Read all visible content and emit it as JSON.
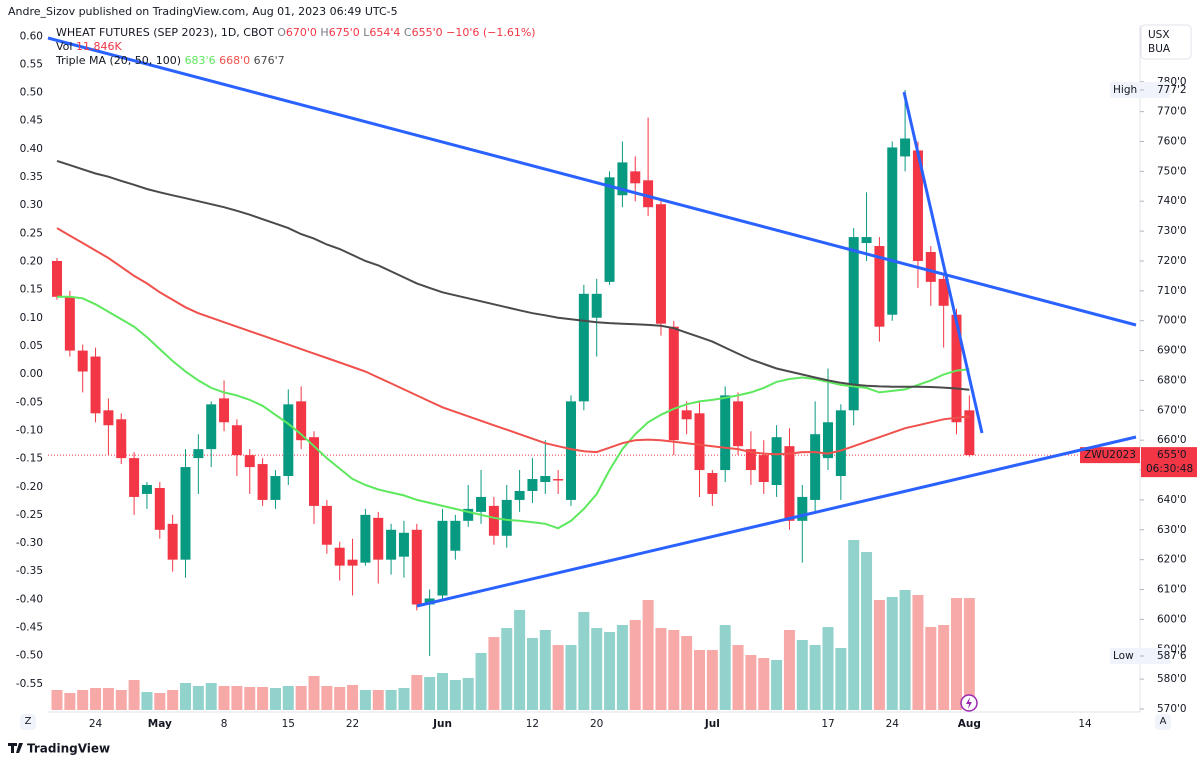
{
  "header": {
    "publisher_line": "Andre_Sizov published on TradingView.com, Aug 01, 2023 06:49 UTC-5"
  },
  "ui": {
    "currency": "USX",
    "unit": "BUA",
    "left_button": "Z",
    "right_button": "A",
    "footer_logo": "TradingView"
  },
  "chart_data": {
    "type": "candlestick",
    "title": "WHEAT FUTURES (SEP 2023), 1D, CBOT",
    "ohlc_legend": [
      {
        "key": "O",
        "value": "670'0"
      },
      {
        "key": "H",
        "value": "675'0"
      },
      {
        "key": "L",
        "value": "654'4"
      },
      {
        "key": "C",
        "value": "655'0"
      }
    ],
    "change_label": "−10'6 (−1.61%)",
    "volume_legend": {
      "label": "Vol",
      "value_label": "11.846K"
    },
    "ma_indicator": {
      "name": "Triple MA (20, 50, 100)"
    },
    "categories": [
      null,
      null,
      null,
      "24",
      null,
      null,
      null,
      null,
      "May",
      null,
      null,
      null,
      null,
      "8",
      null,
      null,
      null,
      null,
      "15",
      null,
      null,
      null,
      null,
      "22",
      null,
      null,
      null,
      null,
      null,
      null,
      "Jun",
      null,
      null,
      null,
      null,
      null,
      null,
      "12",
      null,
      null,
      null,
      null,
      "20",
      null,
      null,
      null,
      null,
      null,
      null,
      null,
      null,
      "Jul",
      null,
      null,
      null,
      null,
      null,
      null,
      null,
      null,
      "17",
      null,
      null,
      null,
      null,
      "24",
      null,
      null,
      null,
      null,
      null,
      "Aug",
      null,
      null,
      null,
      null,
      null,
      null,
      null,
      null,
      "14",
      null,
      null,
      null
    ],
    "open": [
      720,
      708,
      690,
      688,
      670,
      667,
      654,
      642,
      644,
      632,
      620,
      654,
      657,
      674,
      665,
      655,
      652,
      640,
      648,
      673,
      661,
      638,
      624,
      620,
      619,
      634,
      620,
      621,
      630,
      605,
      608,
      623,
      633,
      636,
      638,
      628,
      640,
      643,
      646,
      647,
      640,
      673,
      701,
      713,
      742,
      750,
      747,
      739,
      698,
      670,
      669,
      649,
      650,
      673,
      657,
      655,
      645,
      658,
      633,
      640,
      654,
      648,
      670,
      726,
      725,
      702,
      755,
      757,
      723,
      714,
      702,
      670,
      null,
      null,
      null,
      null,
      null,
      null,
      null,
      null,
      null,
      null,
      null,
      null
    ],
    "high": [
      721,
      710,
      692,
      691,
      674,
      669,
      656,
      646,
      646,
      635,
      657,
      662,
      673,
      680,
      667,
      657,
      654,
      650,
      677,
      678,
      663,
      640,
      626,
      627,
      637,
      636,
      632,
      633,
      632,
      610,
      637,
      635,
      645,
      650,
      641,
      645,
      650,
      654,
      660,
      650,
      675,
      712,
      714,
      750,
      760,
      755,
      768,
      741,
      700,
      673,
      673,
      650,
      678,
      676,
      663,
      660,
      665,
      664,
      645,
      673,
      684,
      672,
      731,
      743,
      728,
      760,
      777.25,
      760,
      725,
      716,
      704,
      675,
      null,
      null,
      null,
      null,
      null,
      null,
      null,
      null,
      null,
      null,
      null,
      null
    ],
    "low": [
      707,
      688,
      676,
      666,
      655,
      652,
      635,
      637,
      627,
      616,
      614,
      642,
      651,
      663,
      648,
      642,
      638,
      637,
      645,
      657,
      632,
      622,
      613,
      608,
      618,
      612,
      615,
      614,
      603,
      587.75,
      606,
      620,
      631,
      632,
      625,
      624,
      636,
      639,
      642,
      642,
      638,
      670,
      688,
      712,
      738,
      740,
      735,
      695,
      655,
      662,
      641,
      638,
      646,
      655,
      645,
      642,
      641,
      630,
      619,
      636,
      650,
      640,
      665,
      720,
      693,
      700,
      750,
      711,
      705,
      691,
      662,
      654.5,
      null,
      null,
      null,
      null,
      null,
      null,
      null,
      null,
      null,
      null,
      null,
      null
    ],
    "close": [
      708,
      690,
      683,
      669,
      665,
      654,
      641,
      645,
      630,
      620,
      651,
      657,
      672,
      666,
      655,
      651,
      640,
      648,
      672,
      660,
      638,
      625,
      618,
      618,
      635,
      620,
      630,
      629,
      605,
      607,
      633,
      633,
      637,
      641,
      628,
      640,
      643,
      647,
      648,
      646.5,
      673,
      709,
      709,
      748,
      753,
      746,
      738,
      699,
      660,
      667,
      650,
      642,
      675,
      658,
      650,
      646,
      661,
      633,
      641,
      662,
      666,
      670,
      728,
      728,
      698,
      758,
      761,
      720,
      713,
      705,
      666,
      655,
      null,
      null,
      null,
      null,
      null,
      null,
      null,
      null,
      null,
      null,
      null,
      null
    ],
    "volume": [
      2116,
      1799,
      2116,
      2328,
      2328,
      2116,
      3174,
      1904,
      1799,
      2116,
      2857,
      2539,
      2857,
      2539,
      2539,
      2433,
      2433,
      2328,
      2539,
      2539,
      3597,
      2539,
      2433,
      2645,
      2116,
      2116,
      2116,
      2328,
      3703,
      3491,
      3915,
      3174,
      3386,
      6031,
      7723,
      8676,
      10580,
      7618,
      8464,
      6877,
      6877,
      10368,
      8676,
      8252,
      8993,
      9522,
      11638,
      8676,
      8464,
      7829,
      6348,
      6348,
      8993,
      6877,
      5819,
      5502,
      5290,
      8464,
      7406,
      6877,
      8781,
      6560,
      17986,
      16716,
      11638,
      11955,
      12696,
      12167,
      8781,
      8993,
      11846,
      11846,
      null,
      null,
      null,
      null,
      null,
      null,
      null,
      null,
      null,
      null,
      null,
      null
    ],
    "up_color": "#089981",
    "down_color": "#f23645",
    "volume_up_color": "#92d2cc",
    "volume_down_color": "#f7a9a7",
    "ma_series": [
      {
        "color": "#5de85d",
        "legend_value": "683'6",
        "values": [
          708,
          708,
          707.5,
          705.5,
          703,
          700.5,
          698,
          694.5,
          690.5,
          686.5,
          683,
          680,
          677.5,
          676,
          675,
          673.5,
          671.5,
          668.5,
          665.5,
          662,
          658,
          654,
          650.5,
          647,
          645,
          643.5,
          642.5,
          641.5,
          640,
          639,
          638,
          637,
          636,
          635,
          634,
          633.3,
          633,
          632.5,
          632,
          630.5,
          633,
          637,
          642,
          650,
          657,
          662,
          666,
          668.5,
          670.5,
          672,
          673,
          673.5,
          674.2,
          675,
          676,
          677.5,
          679.5,
          680.5,
          681,
          680.5,
          679.5,
          678.5,
          678,
          677.5,
          676,
          676.5,
          677,
          678.5,
          680,
          682,
          683.3,
          683.75,
          null,
          null,
          null,
          null,
          null,
          null,
          null,
          null,
          null,
          null,
          null,
          null
        ]
      },
      {
        "color": "#f0514c",
        "legend_value": "668'0",
        "values": [
          731,
          728.5,
          726,
          723.5,
          721,
          718,
          715,
          712.5,
          709.5,
          707,
          704.5,
          702.5,
          701,
          699.5,
          698,
          696.5,
          695,
          693.5,
          692,
          690.5,
          689,
          687.5,
          686,
          684.5,
          683,
          681,
          679,
          677,
          675,
          673,
          671,
          669.5,
          668,
          666.5,
          665,
          663.5,
          662,
          660.5,
          659,
          658,
          657,
          656.3,
          656,
          657.5,
          659,
          660,
          660.2,
          660,
          659.5,
          659,
          658.5,
          658,
          657.5,
          657,
          656,
          655.5,
          655.3,
          655.5,
          656,
          656,
          655.5,
          656.5,
          658,
          659.5,
          661,
          662.5,
          664,
          665,
          666,
          667,
          667.5,
          668,
          null,
          null,
          null,
          null,
          null,
          null,
          null,
          null,
          null,
          null,
          null,
          null
        ]
      },
      {
        "color": "#4a4a4a",
        "legend_value": "676'7",
        "values": [
          753.5,
          752.1,
          750.7,
          749.3,
          748.2,
          746.8,
          745.5,
          744.1,
          743,
          742,
          741,
          740,
          739,
          738,
          736.8,
          735.5,
          734,
          732.5,
          731,
          729,
          727.5,
          725.5,
          724,
          722,
          720,
          718.5,
          716.5,
          714.5,
          712.5,
          711,
          709.5,
          708.5,
          707.5,
          706.5,
          705.5,
          704.5,
          703.5,
          702.5,
          701.8,
          701,
          700.5,
          700,
          699.5,
          699.2,
          699,
          698.8,
          698.6,
          698.3,
          697.5,
          696,
          694.5,
          693,
          691,
          689,
          687,
          685.5,
          684,
          683,
          682,
          681,
          680,
          679.2,
          678.6,
          678.2,
          678,
          677.9,
          677.9,
          677.9,
          677.8,
          677.6,
          677.3,
          676.875,
          null,
          null,
          null,
          null,
          null,
          null,
          null,
          null,
          null,
          null,
          null,
          null
        ]
      }
    ],
    "ylim": [
      569,
      799
    ],
    "yticks": [
      {
        "value": 570,
        "label": "570'0"
      },
      {
        "value": 580,
        "label": "580'0"
      },
      {
        "value": 590,
        "label": "590'0"
      },
      {
        "value": 600,
        "label": "600'0"
      },
      {
        "value": 610,
        "label": "610'0"
      },
      {
        "value": 620,
        "label": "620'0"
      },
      {
        "value": 630,
        "label": "630'0"
      },
      {
        "value": 640,
        "label": "640'0"
      },
      {
        "value": 650,
        "label": "650'0"
      },
      {
        "value": 660,
        "label": "660'0"
      },
      {
        "value": 670,
        "label": "670'0"
      },
      {
        "value": 680,
        "label": "680'0"
      },
      {
        "value": 690,
        "label": "690'0"
      },
      {
        "value": 700,
        "label": "700'0"
      },
      {
        "value": 710,
        "label": "710'0"
      },
      {
        "value": 720,
        "label": "720'0"
      },
      {
        "value": 730,
        "label": "730'0"
      },
      {
        "value": 740,
        "label": "740'0"
      },
      {
        "value": 750,
        "label": "750'0"
      },
      {
        "value": 760,
        "label": "760'0"
      },
      {
        "value": 770,
        "label": "770'0"
      },
      {
        "value": 780,
        "label": "780'0"
      }
    ],
    "left_axis": {
      "ylim": [
        -0.6,
        0.62
      ],
      "yticks": [
        {
          "value": 0.6,
          "label": "0.60"
        },
        0.55,
        {
          "value": 0.5,
          "label": "0.50"
        },
        0.45,
        {
          "value": 0.4,
          "label": "0.40"
        },
        0.35,
        {
          "value": 0.3,
          "label": "0.30"
        },
        0.25,
        {
          "value": 0.2,
          "label": "0.20"
        },
        0.15,
        {
          "value": 0.1,
          "label": "0.10"
        },
        0.05,
        {
          "value": 0,
          "label": "0.00"
        },
        -0.05,
        {
          "value": -0.1,
          "label": "-0.10"
        },
        -0.15,
        {
          "value": -0.2,
          "label": "-0.20"
        },
        -0.25,
        {
          "value": -0.3,
          "label": "-0.30"
        },
        -0.35,
        {
          "value": -0.4,
          "label": "-0.40"
        },
        -0.45,
        {
          "value": -0.5,
          "label": "-0.50"
        },
        -0.55
      ]
    },
    "high_marker": {
      "label": "High",
      "value": 777.25,
      "value_label": "777'2"
    },
    "low_marker": {
      "label": "Low",
      "value": 587.75,
      "value_label": "587'6"
    },
    "last_price": {
      "symbol": "ZWU2023",
      "value": 655,
      "value_label": "655'0",
      "countdown": "06:30:48"
    },
    "grid": false
  }
}
